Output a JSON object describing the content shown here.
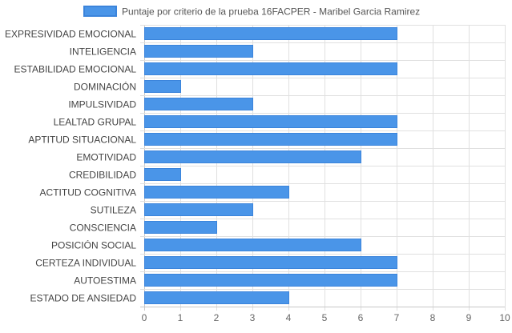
{
  "chart_data": {
    "type": "bar",
    "orientation": "horizontal",
    "categories": [
      "EXPRESIVIDAD EMOCIONAL",
      "INTELIGENCIA",
      "ESTABILIDAD EMOCIONAL",
      "DOMINACIÓN",
      "IMPULSIVIDAD",
      "LEALTAD GRUPAL",
      "APTITUD SITUACIONAL",
      "EMOTIVIDAD",
      "CREDIBILIDAD",
      "ACTITUD COGNITIVA",
      "SUTILEZA",
      "CONSCIENCIA",
      "POSICIÓN SOCIAL",
      "CERTEZA INDIVIDUAL",
      "AUTOESTIMA",
      "ESTADO DE ANSIEDAD"
    ],
    "series": [
      {
        "name": "Puntaje por criterio de la prueba 16FACPER - Maribel Garcia Ramirez",
        "values": [
          7,
          3,
          7,
          1,
          3,
          7,
          7,
          6,
          1,
          4,
          3,
          2,
          6,
          7,
          7,
          4
        ]
      }
    ],
    "xlim": [
      0,
      10
    ],
    "xticks": [
      "0",
      "1",
      "2",
      "3",
      "4",
      "5",
      "6",
      "7",
      "8",
      "9",
      "10"
    ],
    "grid": true,
    "legend_position": "top",
    "colors": {
      "bar_fill": "#4a95e8",
      "bar_border": "#3b84db",
      "grid": "#e0e0e0",
      "axis": "#c8c8c8"
    }
  }
}
